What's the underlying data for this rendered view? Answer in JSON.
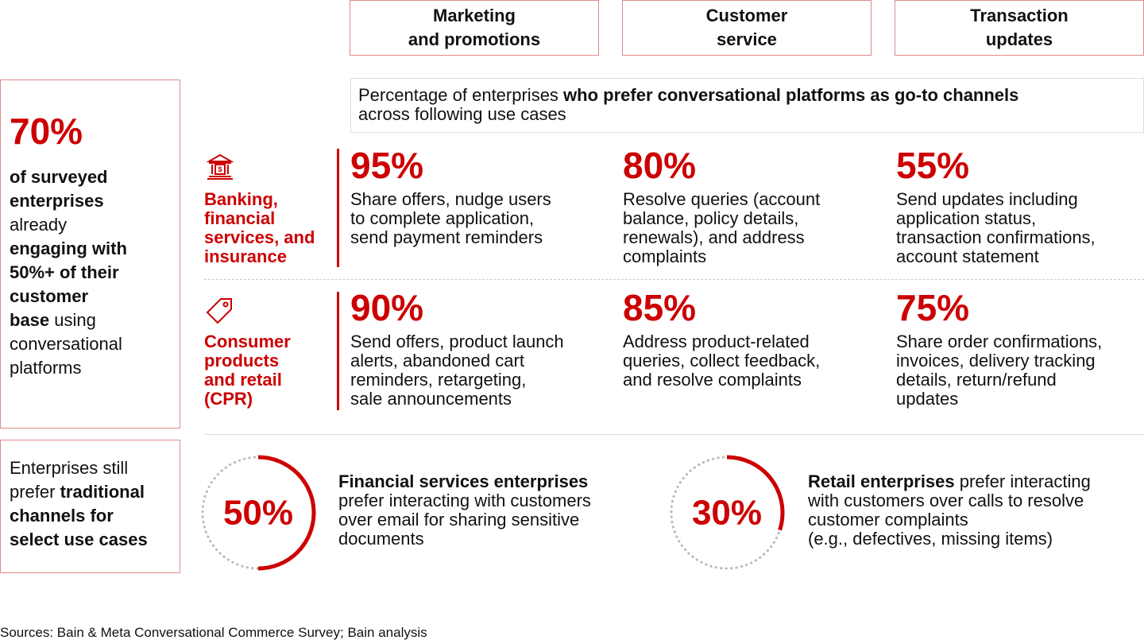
{
  "headers": [
    "Marketing\nand promotions",
    "Customer\nservice",
    "Transaction\nupdates"
  ],
  "summary": {
    "stat": "70%",
    "text": [
      {
        "text": "of surveyed\nenterprises\n",
        "bold": true
      },
      {
        "text": "already\n",
        "bold": false
      },
      {
        "text": "engaging with\n50%+ of their\ncustomer\nbase",
        "bold": true
      },
      {
        "text": " using\nconversational\nplatforms",
        "bold": false
      }
    ]
  },
  "traditional": [
    {
      "text": "Enterprises still\nprefer ",
      "bold": false
    },
    {
      "text": "traditional\nchannels for\nselect use cases",
      "bold": true
    }
  ],
  "description": [
    {
      "text": "Percentage of enterprises ",
      "bold": false
    },
    {
      "text": "who prefer conversational platforms as go-to channels",
      "bold": true
    },
    {
      "text": "\nacross following use cases",
      "bold": false
    }
  ],
  "sectors": [
    {
      "label": "Banking,\nfinancial\nservices, and\ninsurance",
      "cells": [
        {
          "stat": "95%",
          "text": "Share offers, nudge users\nto complete application,\nsend payment reminders"
        },
        {
          "stat": "80%",
          "text": "Resolve queries (account\nbalance, policy details,\nrenewals), and address\ncomplaints"
        },
        {
          "stat": "55%",
          "text": "Send updates including\napplication status,\ntransaction confirmations,\naccount statement"
        }
      ]
    },
    {
      "label": "Consumer\nproducts\nand retail\n(CPR)",
      "cells": [
        {
          "stat": "90%",
          "text": "Send offers, product launch\nalerts, abandoned cart\nreminders, retargeting,\nsale announcements"
        },
        {
          "stat": "85%",
          "text": "Address product-related\nqueries, collect feedback,\nand resolve complaints"
        },
        {
          "stat": "75%",
          "text": "Share order confirmations,\ninvoices, delivery tracking\ndetails, return/refund\nupdates"
        }
      ]
    }
  ],
  "highlights": [
    {
      "share": {
        "value": 50,
        "label": "50%"
      },
      "text": [
        {
          "text": "Financial services enterprises",
          "bold": true
        },
        {
          "text": "\nprefer interacting with customers\nover email for sharing sensitive\ndocuments",
          "bold": false
        }
      ]
    },
    {
      "share": {
        "value": 30,
        "label": "30%"
      },
      "text": [
        {
          "text": "Retail enterprises",
          "bold": true
        },
        {
          "text": " prefer interacting\nwith customers over calls to resolve\ncustomer complaints\n(e.g., defectives, missing items)",
          "bold": false
        }
      ]
    }
  ],
  "source": "Sources: Bain & Meta Conversational Commerce Survey; Bain analysis"
}
